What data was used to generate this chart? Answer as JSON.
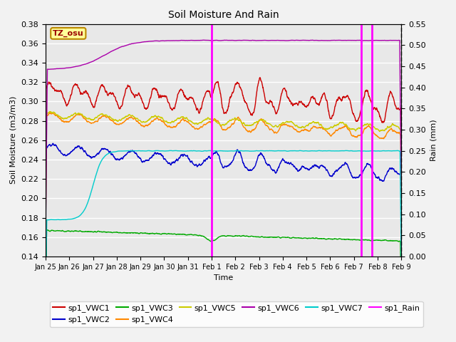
{
  "title": "Soil Moisture And Rain",
  "xlabel": "Time",
  "ylabel_left": "Soil Moisture (m3/m3)",
  "ylabel_right": "Rain (mm)",
  "ylim_left": [
    0.14,
    0.38
  ],
  "ylim_right": [
    0.0,
    0.55
  ],
  "yticks_left": [
    0.14,
    0.16,
    0.18,
    0.2,
    0.22,
    0.24,
    0.26,
    0.28,
    0.3,
    0.32,
    0.34,
    0.36,
    0.38
  ],
  "yticks_right": [
    0.0,
    0.05,
    0.1,
    0.15,
    0.2,
    0.25,
    0.3,
    0.35,
    0.4,
    0.45,
    0.5,
    0.55
  ],
  "bg_color": "#e8e8e8",
  "fig_bg_color": "#f2f2f2",
  "grid_color": "#ffffff",
  "annotation_box": {
    "text": "TZ_osu",
    "facecolor": "#ffff99",
    "edgecolor": "#bb8800"
  },
  "rain_events_days": [
    7.0,
    13.3,
    13.75
  ],
  "xtick_labels": [
    "Jan 25",
    "Jan 26",
    "Jan 27",
    "Jan 28",
    "Jan 29",
    "Jan 30",
    "Jan 31",
    "Feb 1",
    "Feb 2",
    "Feb 3",
    "Feb 4",
    "Feb 5",
    "Feb 6",
    "Feb 7",
    "Feb 8",
    "Feb 9"
  ],
  "xlim": [
    0,
    15
  ],
  "series": {
    "VWC1": {
      "color": "#cc0000",
      "label": "sp1_VWC1"
    },
    "VWC2": {
      "color": "#0000cc",
      "label": "sp1_VWC2"
    },
    "VWC3": {
      "color": "#00aa00",
      "label": "sp1_VWC3"
    },
    "VWC4": {
      "color": "#ff8800",
      "label": "sp1_VWC4"
    },
    "VWC5": {
      "color": "#cccc00",
      "label": "sp1_VWC5"
    },
    "VWC6": {
      "color": "#aa00aa",
      "label": "sp1_VWC6"
    },
    "VWC7": {
      "color": "#00cccc",
      "label": "sp1_VWC7"
    },
    "Rain": {
      "color": "#ff00ff",
      "label": "sp1_Rain"
    }
  }
}
